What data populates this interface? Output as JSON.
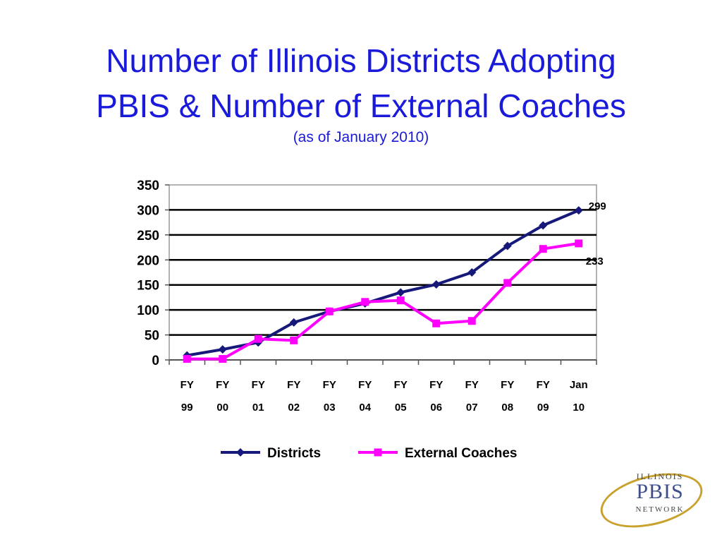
{
  "title_line1": "Number of Illinois Districts Adopting",
  "title_line2": "PBIS & Number of External Coaches",
  "subtitle": "(as of January 2010)",
  "logo": {
    "top": "ILLINOIS",
    "middle": "PBIS",
    "bottom": "NETWORK"
  },
  "colors": {
    "title": "#1a1adb",
    "districts": "#16197a",
    "coaches": "#ff00ff"
  },
  "chart_data": {
    "type": "line",
    "categories": [
      [
        "FY",
        "99"
      ],
      [
        "FY",
        "00"
      ],
      [
        "FY",
        "01"
      ],
      [
        "FY",
        "02"
      ],
      [
        "FY",
        "03"
      ],
      [
        "FY",
        "04"
      ],
      [
        "FY",
        "05"
      ],
      [
        "FY",
        "06"
      ],
      [
        "FY",
        "07"
      ],
      [
        "FY",
        "08"
      ],
      [
        "FY",
        "09"
      ],
      [
        "Jan",
        "10"
      ]
    ],
    "yticks": [
      0,
      50,
      100,
      150,
      200,
      250,
      300,
      350
    ],
    "ylim": [
      0,
      350
    ],
    "grid": true,
    "legend_position": "bottom",
    "series": [
      {
        "name": "Districts",
        "marker": "diamond",
        "values": [
          9,
          21,
          35,
          75,
          97,
          113,
          135,
          151,
          175,
          228,
          269,
          299
        ]
      },
      {
        "name": "External Coaches",
        "marker": "square",
        "values": [
          2,
          2,
          42,
          39,
          97,
          116,
          119,
          73,
          78,
          154,
          222,
          233
        ]
      }
    ],
    "annotations": [
      "299",
      "233"
    ]
  }
}
